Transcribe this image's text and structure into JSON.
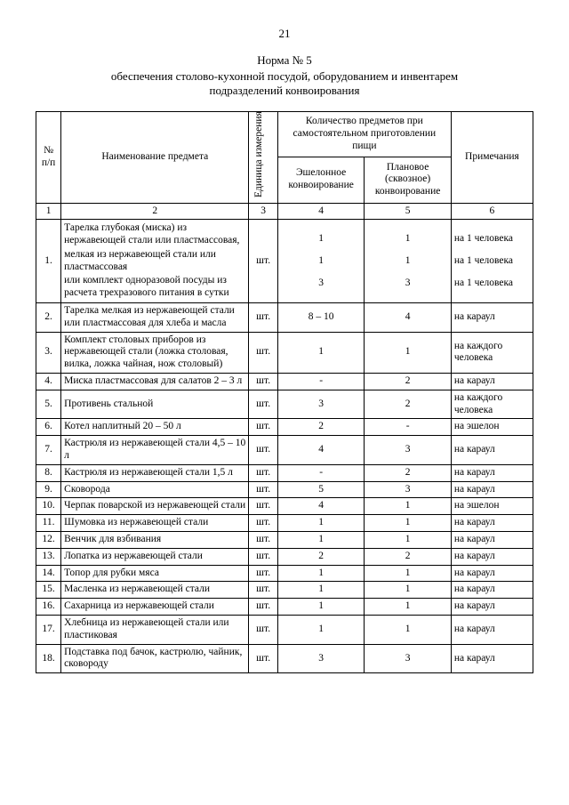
{
  "page_number": "21",
  "title": "Норма № 5",
  "subtitle_l1": "обеспечения столово-кухонной посудой, оборудованием и инвентарем",
  "subtitle_l2": "подразделений конвоирования",
  "header": {
    "num": "№ п/п",
    "name": "Наименование предмета",
    "unit": "Единица измерения",
    "qty_group": "Количество предметов при самостоятельном приготовлении пищи",
    "col4": "Эшелонное конвоирование",
    "col5": "Плановое (сквозное) конвоирование",
    "notes": "Примечания",
    "n1": "1",
    "n2": "2",
    "n3": "3",
    "n4": "4",
    "n5": "5",
    "n6": "6"
  },
  "rows": [
    {
      "n": "1.",
      "name": "Тарелка глубокая (миска) из нержавеющей стали или пластмассовая,\nмелкая из нержавеющей стали или пластмассовая\nили комплект одноразовой посуды из расчета трехразового питания в сутки",
      "unit": "шт.",
      "c4": [
        "1",
        "1",
        "3"
      ],
      "c5": [
        "1",
        "1",
        "3"
      ],
      "note": [
        "на 1 человека",
        "на 1 человека",
        "на 1 человека"
      ]
    },
    {
      "n": "2.",
      "name": "Тарелка мелкая из нержавеющей стали или пластмассовая для хлеба и масла",
      "unit": "шт.",
      "c4": "8 – 10",
      "c5": "4",
      "note": "на караул"
    },
    {
      "n": "3.",
      "name": "Комплект столовых приборов из нержавеющей стали (ложка столовая, вилка, ложка чайная, нож столовый)",
      "unit": "шт.",
      "c4": "1",
      "c5": "1",
      "note": "на каждого человека"
    },
    {
      "n": "4.",
      "name": "Миска пластмассовая для салатов 2 – 3 л",
      "unit": "шт.",
      "c4": "-",
      "c5": "2",
      "note": "на караул"
    },
    {
      "n": "5.",
      "name": "Противень стальной",
      "unit": "шт.",
      "c4": "3",
      "c5": "2",
      "note": "на каждого человека"
    },
    {
      "n": "6.",
      "name": "Котел наплитный 20 – 50 л",
      "unit": "шт.",
      "c4": "2",
      "c5": "-",
      "note": "на эшелон"
    },
    {
      "n": "7.",
      "name": "Кастрюля из нержавеющей стали 4,5 – 10 л",
      "unit": "шт.",
      "c4": "4",
      "c5": "3",
      "note": "на караул"
    },
    {
      "n": "8.",
      "name": "Кастрюля из нержавеющей стали 1,5 л",
      "unit": "шт.",
      "c4": "-",
      "c5": "2",
      "note": "на караул"
    },
    {
      "n": "9.",
      "name": "Сковорода",
      "unit": "шт.",
      "c4": "5",
      "c5": "3",
      "note": "на караул"
    },
    {
      "n": "10.",
      "name": "Черпак поварской из нержавеющей стали",
      "unit": "шт.",
      "c4": "4",
      "c5": "1",
      "note": "на эшелон"
    },
    {
      "n": "11.",
      "name": "Шумовка из нержавеющей стали",
      "unit": "шт.",
      "c4": "1",
      "c5": "1",
      "note": "на караул"
    },
    {
      "n": "12.",
      "name": "Венчик для взбивания",
      "unit": "шт.",
      "c4": "1",
      "c5": "1",
      "note": "на караул"
    },
    {
      "n": "13.",
      "name": "Лопатка из нержавеющей стали",
      "unit": "шт.",
      "c4": "2",
      "c5": "2",
      "note": "на караул"
    },
    {
      "n": "14.",
      "name": "Топор для рубки мяса",
      "unit": "шт.",
      "c4": "1",
      "c5": "1",
      "note": "на караул"
    },
    {
      "n": "15.",
      "name": "Масленка из нержавеющей стали",
      "unit": "шт.",
      "c4": "1",
      "c5": "1",
      "note": "на караул"
    },
    {
      "n": "16.",
      "name": "Сахарница из нержавеющей стали",
      "unit": "шт.",
      "c4": "1",
      "c5": "1",
      "note": "на караул"
    },
    {
      "n": "17.",
      "name": "Хлебница из нержавеющей стали или пластиковая",
      "unit": "шт.",
      "c4": "1",
      "c5": "1",
      "note": "на караул"
    },
    {
      "n": "18.",
      "name": "Подставка под бачок, кастрюлю, чайник, сковороду",
      "unit": "шт.",
      "c4": "3",
      "c5": "3",
      "note": "на караул"
    }
  ]
}
